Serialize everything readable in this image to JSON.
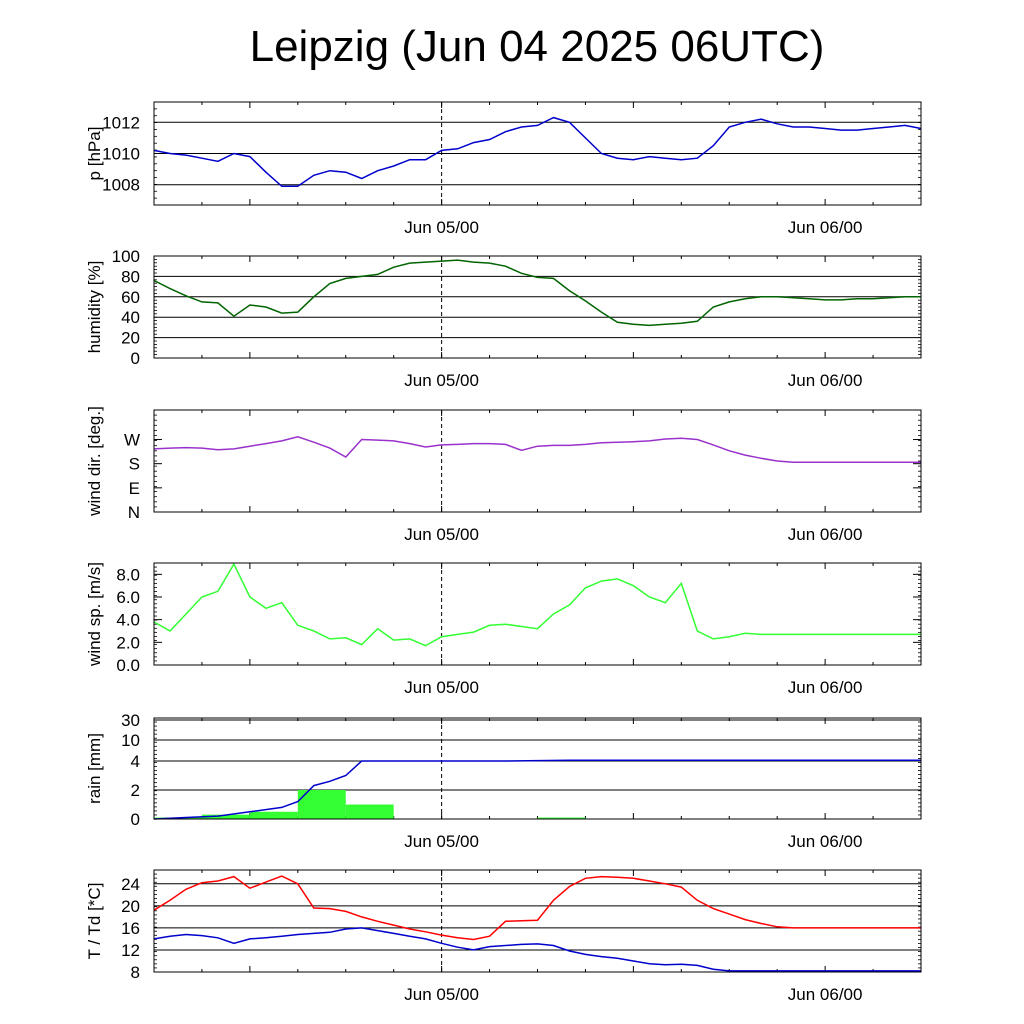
{
  "title": "Leipzig (Jun 04 2025 06UTC)",
  "chart_data": [
    {
      "type": "line",
      "ylabel": "p [hPa]",
      "yticks": [
        "1008",
        "1010",
        "1012"
      ],
      "ylim": [
        1006.7,
        1013.3
      ],
      "xticks": [
        "Jun 05/00",
        "Jun 06/00"
      ],
      "grid": true,
      "series": [
        {
          "color": "#0000cc",
          "x": [
            6,
            7,
            8,
            9,
            10,
            11,
            12,
            13,
            14,
            15,
            16,
            17,
            18,
            19,
            20,
            21,
            22,
            23,
            24,
            25,
            26,
            27,
            28,
            29,
            30,
            31,
            32,
            33,
            34,
            35,
            36,
            37,
            38,
            39,
            40,
            41,
            42,
            43,
            44,
            45,
            46,
            47,
            48,
            49,
            50,
            51,
            52,
            53,
            54
          ],
          "y": [
            1010.2,
            1010.0,
            1009.9,
            1009.7,
            1009.5,
            1010.0,
            1009.8,
            1008.8,
            1007.9,
            1007.9,
            1008.6,
            1008.9,
            1008.8,
            1008.4,
            1008.9,
            1009.2,
            1009.6,
            1009.6,
            1010.2,
            1010.3,
            1010.7,
            1010.9,
            1011.4,
            1011.7,
            1011.8,
            1012.3,
            1012.0,
            1011.0,
            1010.0,
            1009.7,
            1009.6,
            1009.8,
            1009.7,
            1009.6,
            1009.7,
            1010.5,
            1011.7,
            1012.0,
            1012.2,
            1011.9,
            1011.7,
            1011.7,
            1011.6,
            1011.5,
            1011.5,
            1011.6,
            1011.7,
            1011.8,
            1011.6
          ]
        }
      ]
    },
    {
      "type": "line",
      "ylabel": "humidity [%]",
      "yticks": [
        "0",
        "20",
        "40",
        "60",
        "80",
        "100"
      ],
      "ylim": [
        0,
        100
      ],
      "xticks": [
        "Jun 05/00",
        "Jun 06/00"
      ],
      "grid": true,
      "series": [
        {
          "color": "#006400",
          "x": [
            6,
            7,
            8,
            9,
            10,
            11,
            12,
            13,
            14,
            15,
            16,
            17,
            18,
            19,
            20,
            21,
            22,
            23,
            24,
            25,
            26,
            27,
            28,
            29,
            30,
            31,
            32,
            33,
            34,
            35,
            36,
            37,
            38,
            39,
            40,
            41,
            42,
            43,
            44,
            45,
            46,
            47,
            48,
            49,
            50,
            51,
            52,
            53,
            54
          ],
          "y": [
            76,
            68,
            61,
            55,
            54,
            41,
            52,
            50,
            44,
            45,
            60,
            73,
            78,
            80,
            82,
            89,
            93,
            94,
            95,
            96,
            94,
            93,
            90,
            83,
            79,
            78,
            66,
            56,
            45,
            35,
            33,
            32,
            33,
            34,
            36,
            50,
            55,
            58,
            60,
            60,
            59,
            58,
            57,
            57,
            58,
            58,
            59,
            60,
            60
          ]
        }
      ]
    },
    {
      "type": "line",
      "ylabel": "wind dir. [deg.]",
      "yticks": [
        "N",
        "E",
        "S",
        "W"
      ],
      "ylim": [
        0,
        380
      ],
      "xticks": [
        "Jun 05/00",
        "Jun 06/00"
      ],
      "grid": false,
      "series": [
        {
          "color": "#9932cc",
          "x": [
            6,
            7,
            8,
            9,
            10,
            11,
            12,
            13,
            14,
            15,
            16,
            17,
            18,
            19,
            20,
            21,
            22,
            23,
            24,
            25,
            26,
            27,
            28,
            29,
            30,
            31,
            32,
            33,
            34,
            35,
            36,
            37,
            38,
            39,
            40,
            41,
            42,
            43,
            44,
            45,
            46,
            47,
            48,
            49,
            50,
            51,
            52,
            53,
            54
          ],
          "y": [
            235,
            238,
            240,
            238,
            232,
            235,
            245,
            255,
            265,
            280,
            260,
            238,
            205,
            270,
            268,
            265,
            255,
            242,
            250,
            252,
            255,
            255,
            252,
            230,
            245,
            248,
            248,
            252,
            258,
            260,
            262,
            265,
            272,
            275,
            270,
            250,
            228,
            212,
            200,
            190,
            185,
            185,
            185,
            185,
            185,
            185,
            185,
            185,
            185
          ]
        }
      ]
    },
    {
      "type": "line",
      "ylabel": "wind sp. [m/s]",
      "yticks": [
        "0.0",
        "2.0",
        "4.0",
        "6.0",
        "8.0"
      ],
      "ylim": [
        0,
        9
      ],
      "xticks": [
        "Jun 05/00",
        "Jun 06/00"
      ],
      "grid": false,
      "series": [
        {
          "color": "#33ff33",
          "x": [
            6,
            7,
            8,
            9,
            10,
            11,
            12,
            13,
            14,
            15,
            16,
            17,
            18,
            19,
            20,
            21,
            22,
            23,
            24,
            25,
            26,
            27,
            28,
            29,
            30,
            31,
            32,
            33,
            34,
            35,
            36,
            37,
            38,
            39,
            40,
            41,
            42,
            43,
            44,
            45,
            46,
            47,
            48,
            49,
            50,
            51,
            52,
            53,
            54
          ],
          "y": [
            3.8,
            3.0,
            4.5,
            6.0,
            6.5,
            8.9,
            6.0,
            5.0,
            5.5,
            3.5,
            3.0,
            2.3,
            2.4,
            1.8,
            3.2,
            2.2,
            2.3,
            1.7,
            2.5,
            2.7,
            2.9,
            3.5,
            3.6,
            3.4,
            3.2,
            4.5,
            5.3,
            6.8,
            7.4,
            7.6,
            7.0,
            6.0,
            5.5,
            7.2,
            3.0,
            2.3,
            2.5,
            2.8,
            2.7,
            2.7,
            2.7,
            2.7,
            2.7,
            2.7,
            2.7,
            2.7,
            2.7,
            2.7,
            2.7
          ]
        }
      ]
    },
    {
      "type": "bar",
      "ylabel": "rain [mm]",
      "yticks": [
        "0",
        "2",
        "4",
        "10",
        "30"
      ],
      "xticks": [
        "Jun 05/00",
        "Jun 06/00"
      ],
      "grid": true,
      "bars": {
        "color": "#33ff33",
        "bins": [
          {
            "start": 6,
            "end": 9,
            "value": 0.1
          },
          {
            "start": 9,
            "end": 12,
            "value": 0.3
          },
          {
            "start": 12,
            "end": 15,
            "value": 0.5
          },
          {
            "start": 15,
            "end": 18,
            "value": 2.0
          },
          {
            "start": 18,
            "end": 21,
            "value": 1.0
          },
          {
            "start": 21,
            "end": 24,
            "value": 0.0
          },
          {
            "start": 24,
            "end": 27,
            "value": 0.0
          },
          {
            "start": 27,
            "end": 30,
            "value": 0.0
          },
          {
            "start": 30,
            "end": 33,
            "value": 0.1
          }
        ]
      },
      "series": [
        {
          "color": "#0000cc",
          "x": [
            6,
            8,
            10,
            12,
            14,
            15,
            16,
            17,
            18,
            19,
            20,
            22,
            24,
            26,
            28,
            30,
            32,
            34,
            36,
            38,
            40,
            42,
            44,
            46,
            48,
            50,
            52,
            54
          ],
          "y": [
            0,
            0.1,
            0.2,
            0.5,
            0.8,
            1.2,
            2.3,
            2.6,
            3.0,
            4.0,
            4.0,
            4.0,
            4.0,
            4.0,
            4.0,
            4.1,
            4.2,
            4.2,
            4.2,
            4.2,
            4.2,
            4.2,
            4.2,
            4.2,
            4.2,
            4.2,
            4.2,
            4.2
          ]
        }
      ]
    },
    {
      "type": "line",
      "ylabel": "T / Td [*C]",
      "yticks": [
        "8",
        "12",
        "16",
        "20",
        "24"
      ],
      "ylim": [
        8,
        26.5
      ],
      "xticks": [
        "Jun 05/00",
        "Jun 06/00"
      ],
      "grid": true,
      "series": [
        {
          "color": "#ff0000",
          "x": [
            6,
            7,
            8,
            9,
            10,
            11,
            12,
            13,
            14,
            15,
            16,
            17,
            18,
            19,
            20,
            21,
            22,
            23,
            24,
            25,
            26,
            27,
            28,
            29,
            30,
            31,
            32,
            33,
            34,
            35,
            36,
            37,
            38,
            39,
            40,
            41,
            42,
            43,
            44,
            45,
            46,
            47,
            48,
            49,
            50,
            51,
            52,
            53,
            54
          ],
          "y": [
            19.2,
            21.0,
            23.0,
            24.2,
            24.5,
            25.3,
            23.2,
            24.3,
            25.4,
            24.0,
            19.6,
            19.5,
            19.0,
            18.0,
            17.2,
            16.5,
            15.8,
            15.3,
            14.7,
            14.2,
            13.9,
            14.5,
            17.2,
            17.3,
            17.4,
            21.0,
            23.5,
            25.0,
            25.3,
            25.2,
            25.0,
            24.5,
            24.0,
            23.4,
            21.0,
            19.5,
            18.5,
            17.5,
            16.8,
            16.2,
            16.0,
            16.0,
            16.0,
            16.0,
            16.0,
            16.0,
            16.0,
            16.0,
            16.0
          ]
        },
        {
          "color": "#0000cc",
          "x": [
            6,
            7,
            8,
            9,
            10,
            11,
            12,
            13,
            14,
            15,
            16,
            17,
            18,
            19,
            20,
            21,
            22,
            23,
            24,
            25,
            26,
            27,
            28,
            29,
            30,
            31,
            32,
            33,
            34,
            35,
            36,
            37,
            38,
            39,
            40,
            41,
            42,
            43,
            44,
            45,
            46,
            47,
            48,
            49,
            50,
            51,
            52,
            53,
            54
          ],
          "y": [
            14.0,
            14.5,
            14.8,
            14.6,
            14.2,
            13.2,
            14.0,
            14.2,
            14.5,
            14.8,
            15.0,
            15.2,
            15.8,
            16.0,
            15.5,
            15.0,
            14.5,
            14.0,
            13.2,
            12.5,
            12.0,
            12.6,
            12.8,
            13.0,
            13.1,
            12.8,
            11.8,
            11.2,
            10.8,
            10.5,
            10.0,
            9.5,
            9.3,
            9.4,
            9.2,
            8.5,
            8.2,
            8.2,
            8.2,
            8.2,
            8.2,
            8.2,
            8.2,
            8.2,
            8.2,
            8.2,
            8.2,
            8.2,
            8.2
          ]
        }
      ]
    }
  ]
}
